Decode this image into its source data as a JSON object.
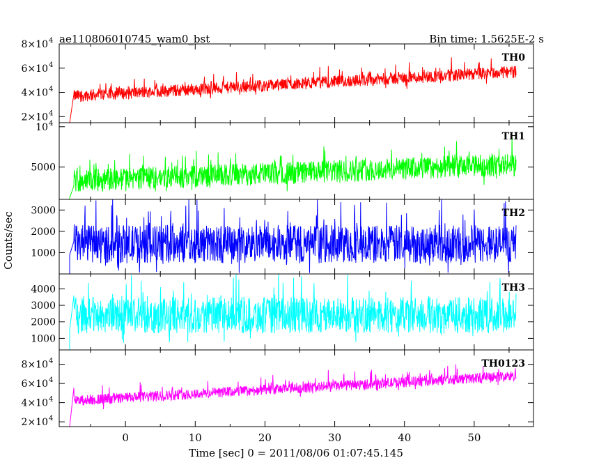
{
  "header": {
    "title": "ae110806010745_wam0_bst",
    "bin_time": "Bin time: 1.5625E-2 s"
  },
  "chart_data": {
    "type": "line",
    "title": "ae110806010745_wam0_bst",
    "xlabel": "Time [sec] 0 = 2011/08/06 01:07:45.145",
    "ylabel": "Counts/sec",
    "xlim": [
      -9.5,
      58.5
    ],
    "x_ticks": [
      0,
      10,
      20,
      30,
      40,
      50
    ],
    "x_tick_labels": [
      "0",
      "10",
      "20",
      "30",
      "40",
      "50"
    ],
    "t_start": -8,
    "t_end": 56,
    "panels": [
      {
        "name": "TH0",
        "color": "#ff0000",
        "ylim": [
          15000,
          80000
        ],
        "ticks": [
          {
            "value": 20000,
            "base": "2×10",
            "exp": "4"
          },
          {
            "value": 40000,
            "base": "4×10",
            "exp": "4"
          },
          {
            "value": 60000,
            "base": "6×10",
            "exp": "4"
          },
          {
            "value": 80000,
            "base": "8×10",
            "exp": "4"
          }
        ],
        "start_value": 15000,
        "mean_start": 37000,
        "mean_end": 57000,
        "noise": 5000,
        "spike": 10000,
        "floor": 26000
      },
      {
        "name": "TH1",
        "color": "#00ff00",
        "ylim": [
          1000,
          10500
        ],
        "ticks": [
          {
            "value": 5000,
            "base": "5000",
            "exp": ""
          },
          {
            "value": 10000,
            "base": "10",
            "exp": "4"
          }
        ],
        "start_value": 1200,
        "mean_start": 3300,
        "mean_end": 5300,
        "noise": 1400,
        "spike": 2200,
        "floor": 2000
      },
      {
        "name": "TH2",
        "color": "#0000ff",
        "ylim": [
          0,
          3500
        ],
        "ticks": [
          {
            "value": 1000,
            "base": "1000",
            "exp": ""
          },
          {
            "value": 2000,
            "base": "2000",
            "exp": ""
          },
          {
            "value": 3000,
            "base": "3000",
            "exp": ""
          }
        ],
        "start_value": 900,
        "mean_start": 1400,
        "mean_end": 1400,
        "noise": 900,
        "spike": 1700,
        "floor": 50
      },
      {
        "name": "TH3",
        "color": "#00ffff",
        "ylim": [
          300,
          4900
        ],
        "ticks": [
          {
            "value": 1000,
            "base": "1000",
            "exp": ""
          },
          {
            "value": 2000,
            "base": "2000",
            "exp": ""
          },
          {
            "value": 3000,
            "base": "3000",
            "exp": ""
          },
          {
            "value": 4000,
            "base": "4000",
            "exp": ""
          }
        ],
        "start_value": 1500,
        "mean_start": 2400,
        "mean_end": 2400,
        "noise": 1100,
        "spike": 1900,
        "floor": 350
      },
      {
        "name": "TH0123",
        "color": "#ff00ff",
        "ylim": [
          15000,
          95000
        ],
        "ticks": [
          {
            "value": 20000,
            "base": "2×10",
            "exp": "4"
          },
          {
            "value": 40000,
            "base": "4×10",
            "exp": "4"
          },
          {
            "value": 60000,
            "base": "6×10",
            "exp": "4"
          },
          {
            "value": 80000,
            "base": "8×10",
            "exp": "4"
          }
        ],
        "start_value": 15000,
        "mean_start": 42000,
        "mean_end": 68000,
        "noise": 5500,
        "spike": 12000,
        "floor": 30000
      }
    ]
  }
}
